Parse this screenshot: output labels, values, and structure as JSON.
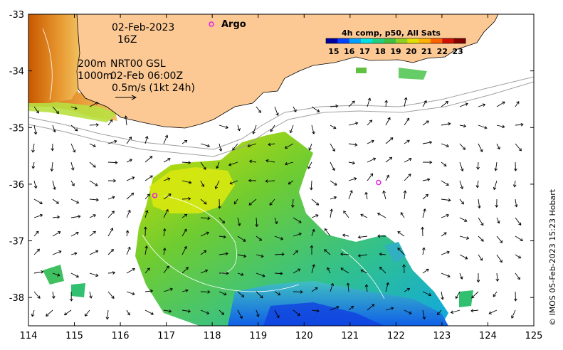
{
  "map": {
    "date_label": "02-Feb-2023",
    "time_label": "16Z",
    "depth_line1": "200m",
    "depth_line2": "1000m",
    "current_source": "NRT00 GSL",
    "current_time": "02-Feb 06:00Z",
    "scale_label": "0.5m/s (1kt 24h)",
    "argo_label": "Argo",
    "credit": "© IMOS 05-Feb-2023 15:23 Hobart",
    "colors": {
      "land": "#fcc994",
      "argo": "#e61ee6",
      "depth_contour": "#a0a0a0",
      "sst_contour": "#ffffff"
    },
    "axes": {
      "lon_ticks": [
        "114",
        "115",
        "116",
        "117",
        "118",
        "119",
        "120",
        "121",
        "122",
        "123",
        "124",
        "125"
      ],
      "lat_ticks": [
        "-33",
        "-34",
        "-35",
        "-36",
        "-37",
        "-38"
      ],
      "lon_range": [
        114,
        125
      ],
      "lat_range": [
        -38.5,
        -33
      ]
    },
    "argo_floats": [
      {
        "lon": 116.75,
        "lat": -36.2
      },
      {
        "lon": 121.62,
        "lat": -35.97
      }
    ],
    "colorbar": {
      "title": "4h comp, p50, All Sats",
      "ticks": [
        "15",
        "16",
        "17",
        "18",
        "19",
        "20",
        "21",
        "22",
        "23"
      ],
      "min": 14.5,
      "max": 23.5,
      "colors": [
        "#0000a0",
        "#0040ff",
        "#00a0ff",
        "#00e0e0",
        "#20d080",
        "#40c040",
        "#90d020",
        "#e0e000",
        "#ffb000",
        "#ff6000",
        "#d01000",
        "#800000"
      ]
    }
  }
}
